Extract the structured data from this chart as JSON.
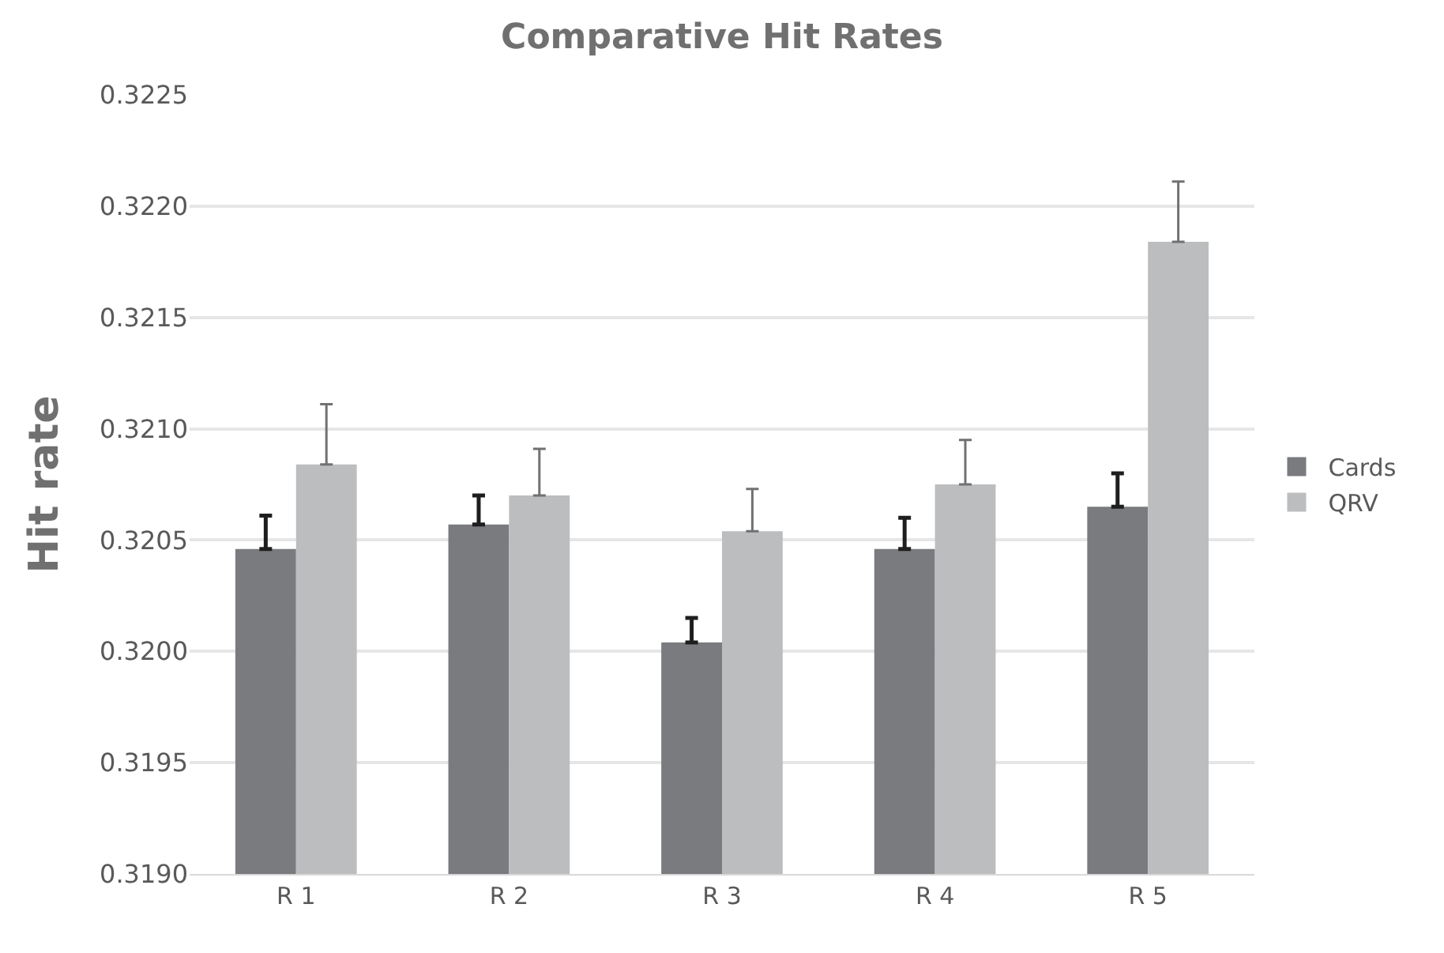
{
  "chart_data": {
    "type": "bar",
    "title": "Comparative Hit Rates",
    "ylabel": "Hit rate",
    "categories": [
      "R 1",
      "R 2",
      "R 3",
      "R 4",
      "R 5"
    ],
    "series": [
      {
        "name": "Cards",
        "color": "#7a7b7e",
        "values": [
          0.32046,
          0.32057,
          0.32004,
          0.32046,
          0.32065
        ],
        "errors": [
          0.00015,
          0.00013,
          0.00011,
          0.00014,
          0.00015
        ]
      },
      {
        "name": "QRV",
        "color": "#bcbdbf",
        "values": [
          0.32084,
          0.3207,
          0.32054,
          0.32075,
          0.32184
        ],
        "errors": [
          0.00027,
          0.00021,
          0.00019,
          0.0002,
          0.00027
        ]
      }
    ],
    "ylim": [
      0.319,
      0.3225
    ],
    "yticks": [
      {
        "value": 0.319,
        "label": "0.3190"
      },
      {
        "value": 0.3195,
        "label": "0.3195"
      },
      {
        "value": 0.32,
        "label": "0.3200"
      },
      {
        "value": 0.3205,
        "label": "0.3205"
      },
      {
        "value": 0.321,
        "label": "0.3210"
      },
      {
        "value": 0.3215,
        "label": "0.3215"
      },
      {
        "value": 0.322,
        "label": "0.3220"
      },
      {
        "value": 0.3225,
        "label": "0.3225"
      }
    ],
    "grid": "y",
    "legend": "right"
  }
}
